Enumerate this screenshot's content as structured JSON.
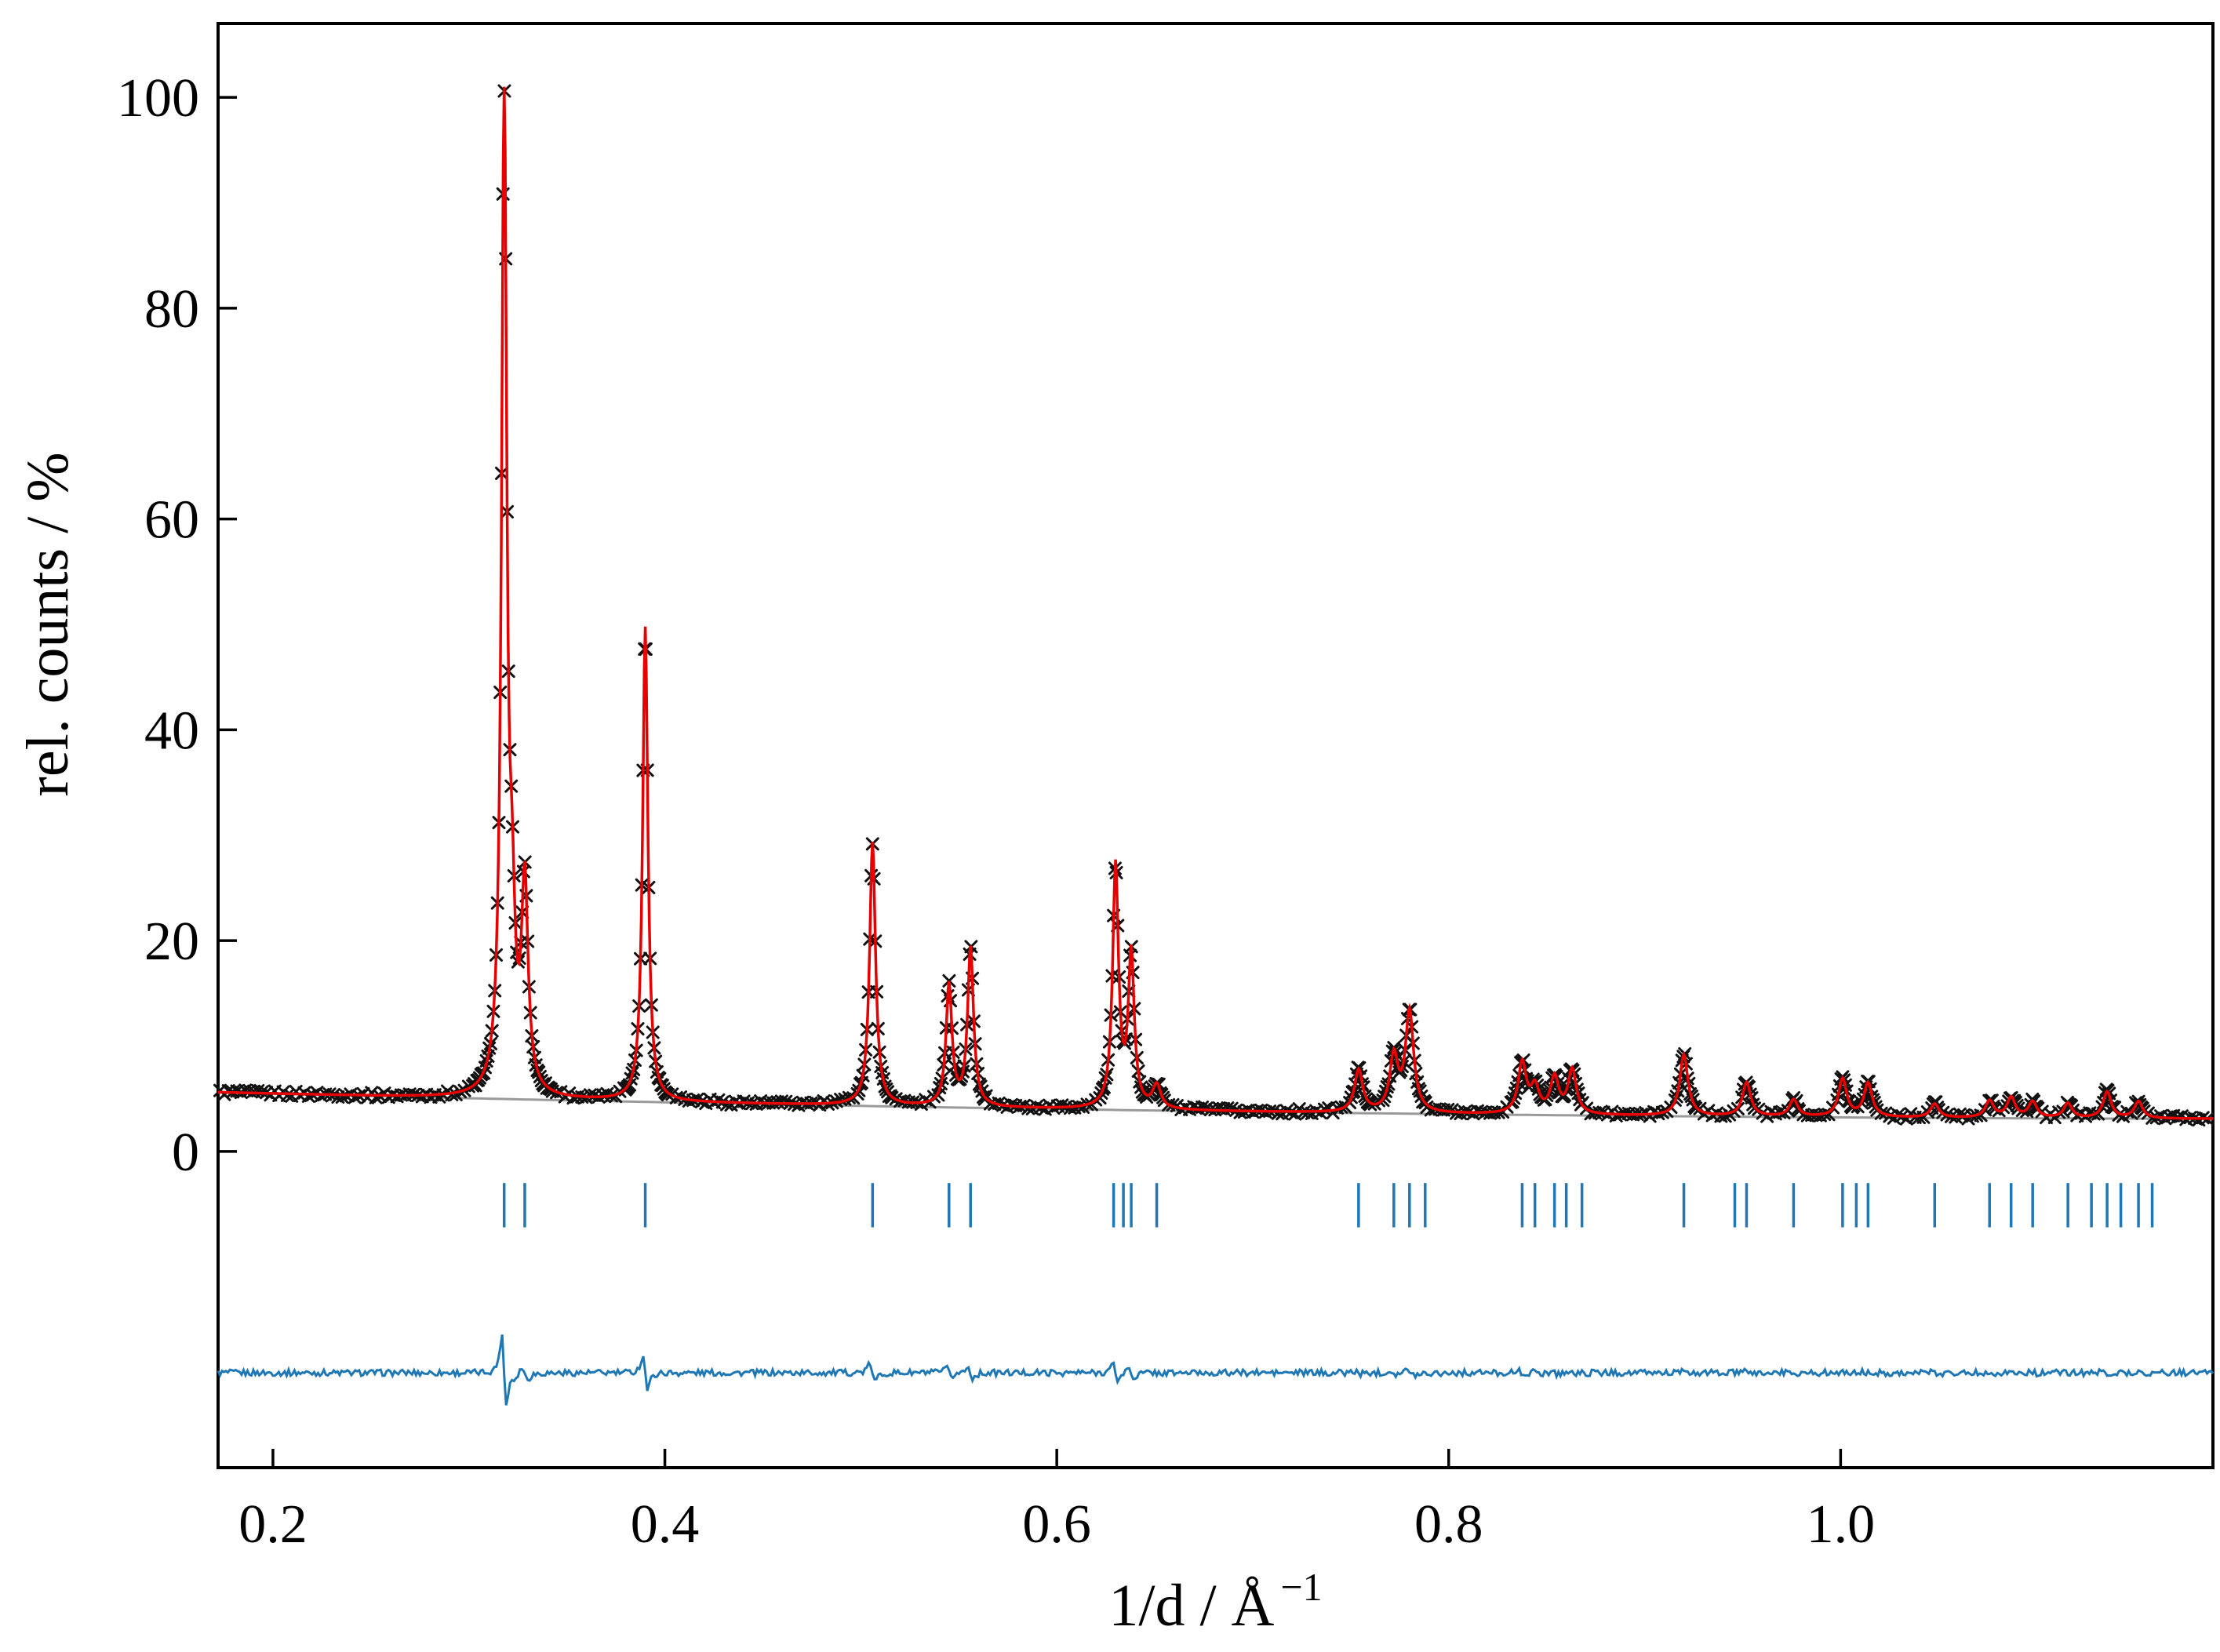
{
  "page": {
    "background_color": "#ffffff"
  },
  "chart_data": {
    "type": "line",
    "title": "",
    "description": "Rietveld refinement powder diffraction pattern: observed x-markers, calculated red curve, gray background curve, blue Bragg reflection tick markers, blue difference curve",
    "xlabel_base": "1/d / Å",
    "xlabel_exponent": "−1",
    "ylabel": "rel. counts / %",
    "xlim": [
      0.172,
      1.19
    ],
    "ylim": [
      -30,
      107
    ],
    "xticks": [
      {
        "v": 0.2,
        "label": "0.2"
      },
      {
        "v": 0.4,
        "label": "0.4"
      },
      {
        "v": 0.6,
        "label": "0.6"
      },
      {
        "v": 0.8,
        "label": "0.8"
      },
      {
        "v": 1.0,
        "label": "1.0"
      }
    ],
    "yticks": [
      {
        "v": 0,
        "label": "0"
      },
      {
        "v": 20,
        "label": "20"
      },
      {
        "v": 40,
        "label": "40"
      },
      {
        "v": 60,
        "label": "60"
      },
      {
        "v": 80,
        "label": "80"
      },
      {
        "v": 100,
        "label": "100"
      }
    ],
    "grid": false,
    "legend": null,
    "series": [
      {
        "name": "observed",
        "style": "x-markers",
        "color": "#111111"
      },
      {
        "name": "calculated",
        "style": "line",
        "color": "#e60000"
      },
      {
        "name": "background",
        "style": "line",
        "color": "#9a9a9a"
      },
      {
        "name": "bragg-reflection-ticks",
        "style": "ticks",
        "color": "#1f77b4"
      },
      {
        "name": "difference",
        "style": "line",
        "color": "#1f77b4"
      }
    ],
    "background_curve": {
      "a": 5.6,
      "b": -4.6,
      "c": 2.1
    },
    "peaks": [
      [
        0.318,
        95.0,
        0.0016
      ],
      [
        0.322,
        13.0,
        0.0018
      ],
      [
        0.3285,
        19.5,
        0.002
      ],
      [
        0.39,
        45.0,
        0.0016
      ],
      [
        0.506,
        25.0,
        0.0018
      ],
      [
        0.545,
        11.5,
        0.0018
      ],
      [
        0.556,
        15.0,
        0.0018
      ],
      [
        0.63,
        23.0,
        0.0018
      ],
      [
        0.638,
        14.5,
        0.0018
      ],
      [
        0.651,
        2.2,
        0.0025
      ],
      [
        0.754,
        4.0,
        0.0025
      ],
      [
        0.772,
        5.2,
        0.0025
      ],
      [
        0.78,
        9.5,
        0.0025
      ],
      [
        0.8375,
        4.8,
        0.0025
      ],
      [
        0.844,
        2.4,
        0.0025
      ],
      [
        0.854,
        3.4,
        0.0025
      ],
      [
        0.863,
        4.2,
        0.0025
      ],
      [
        0.92,
        5.8,
        0.0025
      ],
      [
        0.952,
        3.2,
        0.0025
      ],
      [
        0.976,
        1.6,
        0.0025
      ],
      [
        1.001,
        3.6,
        0.0025
      ],
      [
        1.014,
        3.2,
        0.0025
      ],
      [
        1.048,
        1.3,
        0.0025
      ],
      [
        1.076,
        1.6,
        0.0025
      ],
      [
        1.087,
        1.9,
        0.0025
      ],
      [
        1.098,
        1.5,
        0.0025
      ],
      [
        1.116,
        1.4,
        0.0025
      ],
      [
        1.136,
        2.5,
        0.0025
      ],
      [
        1.152,
        1.6,
        0.0025
      ]
    ],
    "bragg_ticks": {
      "y_top": -3.0,
      "y_bottom": -7.2,
      "positions": [
        0.318,
        0.3285,
        0.39,
        0.506,
        0.545,
        0.556,
        0.629,
        0.634,
        0.638,
        0.651,
        0.754,
        0.772,
        0.78,
        0.788,
        0.8375,
        0.844,
        0.854,
        0.86,
        0.868,
        0.92,
        0.946,
        0.952,
        0.976,
        1.001,
        1.008,
        1.014,
        1.048,
        1.076,
        1.087,
        1.098,
        1.116,
        1.128,
        1.136,
        1.143,
        1.152,
        1.159
      ]
    },
    "difference": {
      "baseline": -21,
      "scale": 0.06,
      "shift": 0.0009,
      "noise": 0.6
    },
    "observed": {
      "noise": 0.5,
      "marker_size": 7,
      "step_dense": 0.0007,
      "step_sparse": 0.00215,
      "dense_threshold": 1.0
    }
  }
}
